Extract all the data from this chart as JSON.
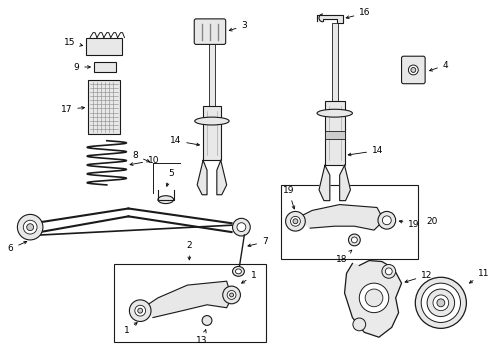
{
  "bg_color": "#ffffff",
  "lc": "#1a1a1a",
  "fc_light": "#e8e8e8",
  "fc_mid": "#cccccc",
  "fc_dark": "#aaaaaa",
  "fig_width": 4.9,
  "fig_height": 3.6,
  "dpi": 100
}
